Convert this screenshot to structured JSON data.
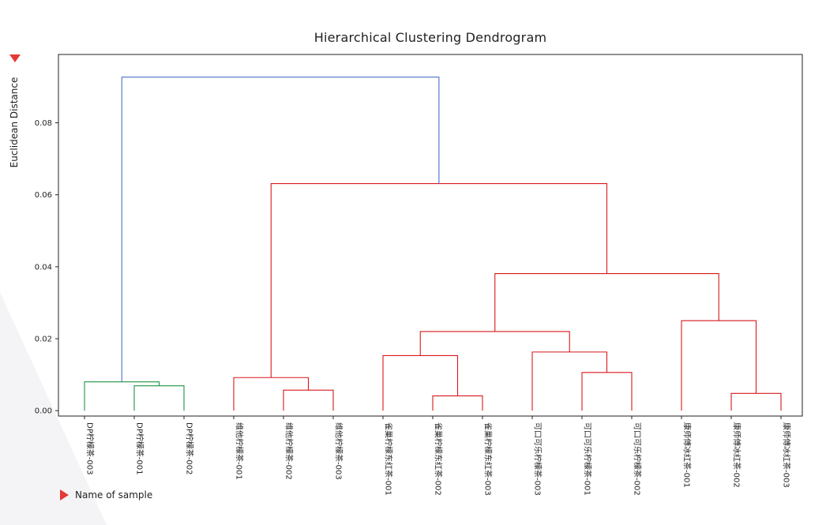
{
  "chart_data": {
    "type": "dendrogram",
    "title": "Hierarchical Clustering Dendrogram",
    "ylabel": "Euclidean Distance",
    "xlabel": "Name of sample",
    "ylim": [
      -0.0015,
      0.099
    ],
    "yticks": [
      0.0,
      0.02,
      0.04,
      0.06,
      0.08
    ],
    "ytick_labels": [
      "0.00",
      "0.02",
      "0.04",
      "0.06",
      "0.08"
    ],
    "colors": {
      "green": "#1a9641",
      "red": "#d7191c",
      "blue": "#4a6fc7",
      "axis": "#222222"
    },
    "leaves": [
      "DP柠檬茶-003",
      "DP柠檬茶-001",
      "DP柠檬茶-002",
      "维他柠檬茶-001",
      "维他柠檬茶-002",
      "维他柠檬茶-003",
      "雀巢柠檬东红茶-001",
      "雀巢柠檬东红茶-002",
      "雀巢柠檬东红茶-003",
      "可口可乐柠檬茶-003",
      "可口可乐柠檬茶-001",
      "可口可乐柠檬茶-002",
      "康师傅冰红茶-001",
      "康师傅冰红茶-002",
      "康师傅冰红茶-003"
    ],
    "merges": [
      {
        "left": "L1",
        "right": "L2",
        "height": 0.0069,
        "color": "green"
      },
      {
        "left": "L0",
        "right": "M0",
        "height": 0.008,
        "color": "green"
      },
      {
        "left": "L4",
        "right": "L5",
        "height": 0.0057,
        "color": "red"
      },
      {
        "left": "L3",
        "right": "M2",
        "height": 0.0092,
        "color": "red"
      },
      {
        "left": "L7",
        "right": "L8",
        "height": 0.0041,
        "color": "red"
      },
      {
        "left": "L6",
        "right": "M4",
        "height": 0.0153,
        "color": "red"
      },
      {
        "left": "L10",
        "right": "L11",
        "height": 0.0106,
        "color": "red"
      },
      {
        "left": "L9",
        "right": "M6",
        "height": 0.0163,
        "color": "red"
      },
      {
        "left": "M5",
        "right": "M7",
        "height": 0.022,
        "color": "red"
      },
      {
        "left": "L13",
        "right": "L14",
        "height": 0.0048,
        "color": "red"
      },
      {
        "left": "L12",
        "right": "M9",
        "height": 0.025,
        "color": "red"
      },
      {
        "left": "M8",
        "right": "M10",
        "height": 0.0381,
        "color": "red"
      },
      {
        "left": "M3",
        "right": "M11",
        "height": 0.0631,
        "color": "red"
      },
      {
        "left": "M1",
        "right": "M12",
        "height": 0.0927,
        "color": "blue"
      }
    ]
  }
}
